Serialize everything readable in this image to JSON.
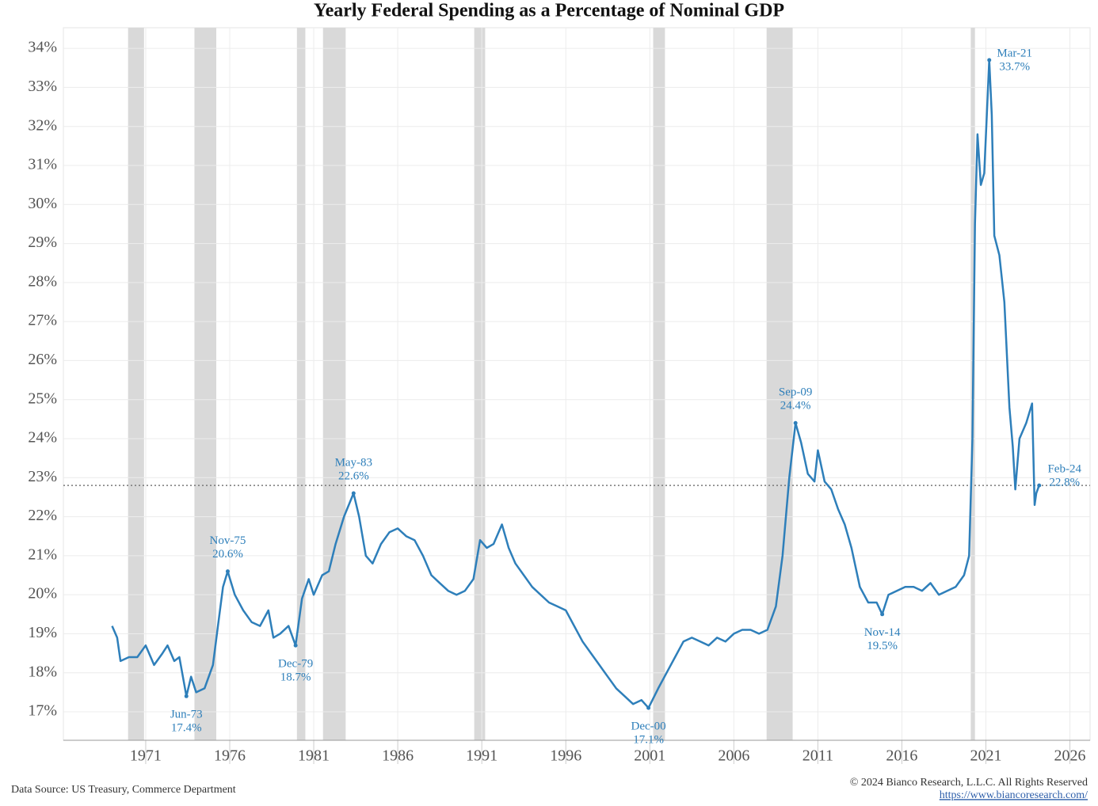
{
  "chart_data": {
    "type": "line",
    "title": "Yearly Federal Spending as a Percentage of Nominal GDP",
    "source": "Data Source: US Treasury, Commerce Department",
    "copyright": "© 2024 Bianco Research, L.L.C. All Rights Reserved",
    "url": "https://www.biancoresearch.com/",
    "xlim": [
      1966.1,
      2027.2
    ],
    "xticks": [
      1971,
      1976,
      1981,
      1986,
      1991,
      1996,
      2001,
      2006,
      2011,
      2016,
      2021,
      2026
    ],
    "ylim": [
      16.27,
      34.53
    ],
    "yticks": [
      {
        "value": 17,
        "label": "17%"
      },
      {
        "value": 18,
        "label": "18%"
      },
      {
        "value": 19,
        "label": "19%"
      },
      {
        "value": 20,
        "label": "20%"
      },
      {
        "value": 21,
        "label": "21%"
      },
      {
        "value": 22,
        "label": "22%"
      },
      {
        "value": 23,
        "label": "23%"
      },
      {
        "value": 24,
        "label": "24%"
      },
      {
        "value": 25,
        "label": "25%"
      },
      {
        "value": 26,
        "label": "26%"
      },
      {
        "value": 27,
        "label": "27%"
      },
      {
        "value": 28,
        "label": "28%"
      },
      {
        "value": 29,
        "label": "29%"
      },
      {
        "value": 30,
        "label": "30%"
      },
      {
        "value": 31,
        "label": "31%"
      },
      {
        "value": 32,
        "label": "32%"
      },
      {
        "value": 33,
        "label": "33%"
      },
      {
        "value": 34,
        "label": "34%"
      }
    ],
    "grid": true,
    "reference_line": 22.8,
    "recessions": [
      [
        1969.95,
        1970.9
      ],
      [
        1973.9,
        1975.2
      ],
      [
        1980.0,
        1980.5
      ],
      [
        1981.55,
        1982.9
      ],
      [
        1990.55,
        1991.2
      ],
      [
        2001.2,
        2001.9
      ],
      [
        2007.95,
        2009.5
      ],
      [
        2020.1,
        2020.35
      ]
    ],
    "recession_color": "#d9d9d9",
    "x": [
      1969.0,
      1969.3,
      1969.5,
      1970.0,
      1970.5,
      1971.0,
      1971.5,
      1972.0,
      1972.3,
      1972.7,
      1973.0,
      1973.42,
      1973.7,
      1974.0,
      1974.5,
      1975.0,
      1975.3,
      1975.6,
      1975.88,
      1976.3,
      1976.8,
      1977.3,
      1977.8,
      1978.3,
      1978.6,
      1979.0,
      1979.5,
      1979.92,
      1980.3,
      1980.7,
      1981.0,
      1981.5,
      1981.9,
      1982.3,
      1982.8,
      1983.37,
      1983.7,
      1984.1,
      1984.5,
      1985.0,
      1985.5,
      1986.0,
      1986.5,
      1987.0,
      1987.5,
      1988.0,
      1988.5,
      1989.0,
      1989.5,
      1990.0,
      1990.5,
      1990.9,
      1991.3,
      1991.7,
      1992.2,
      1992.6,
      1993.0,
      1993.5,
      1994.0,
      1994.5,
      1995.0,
      1995.5,
      1996.0,
      1996.5,
      1997.0,
      1997.5,
      1998.0,
      1998.5,
      1999.0,
      1999.5,
      2000.0,
      2000.5,
      2000.92,
      2001.5,
      2002.0,
      2002.5,
      2003.0,
      2003.5,
      2004.0,
      2004.5,
      2005.0,
      2005.5,
      2006.0,
      2006.5,
      2007.0,
      2007.5,
      2008.0,
      2008.5,
      2008.9,
      2009.3,
      2009.67,
      2010.0,
      2010.4,
      2010.8,
      2011.0,
      2011.4,
      2011.8,
      2012.2,
      2012.6,
      2013.0,
      2013.5,
      2014.0,
      2014.5,
      2014.83,
      2015.2,
      2015.7,
      2016.2,
      2016.7,
      2017.2,
      2017.7,
      2018.2,
      2018.7,
      2019.2,
      2019.7,
      2020.0,
      2020.2,
      2020.35,
      2020.5,
      2020.7,
      2020.9,
      2021.2,
      2021.35,
      2021.5,
      2021.8,
      2022.1,
      2022.4,
      2022.6,
      2022.75,
      2023.0,
      2023.4,
      2023.75,
      2023.9,
      2024.0,
      2024.17
    ],
    "series": [
      {
        "color": "#2e7fba",
        "values": [
          19.2,
          18.9,
          18.3,
          18.4,
          18.4,
          18.7,
          18.2,
          18.5,
          18.7,
          18.3,
          18.4,
          17.4,
          17.9,
          17.5,
          17.6,
          18.2,
          19.2,
          20.2,
          20.6,
          20.0,
          19.6,
          19.3,
          19.2,
          19.6,
          18.9,
          19.0,
          19.2,
          18.7,
          19.9,
          20.4,
          20.0,
          20.5,
          20.6,
          21.3,
          22.0,
          22.6,
          22.0,
          21.0,
          20.8,
          21.3,
          21.6,
          21.7,
          21.5,
          21.4,
          21.0,
          20.5,
          20.3,
          20.1,
          20.0,
          20.1,
          20.4,
          21.4,
          21.2,
          21.3,
          21.8,
          21.2,
          20.8,
          20.5,
          20.2,
          20.0,
          19.8,
          19.7,
          19.6,
          19.2,
          18.8,
          18.5,
          18.2,
          17.9,
          17.6,
          17.4,
          17.2,
          17.3,
          17.1,
          17.6,
          18.0,
          18.4,
          18.8,
          18.9,
          18.8,
          18.7,
          18.9,
          18.8,
          19.0,
          19.1,
          19.1,
          19.0,
          19.1,
          19.7,
          21.0,
          23.0,
          24.4,
          23.9,
          23.1,
          22.9,
          23.7,
          22.9,
          22.7,
          22.2,
          21.8,
          21.2,
          20.2,
          19.8,
          19.8,
          19.5,
          20.0,
          20.1,
          20.2,
          20.2,
          20.1,
          20.3,
          20.0,
          20.1,
          20.2,
          20.5,
          21.0,
          24.0,
          29.5,
          31.8,
          30.5,
          30.8,
          33.7,
          32.3,
          29.2,
          28.7,
          27.5,
          24.8,
          23.8,
          22.7,
          24.0,
          24.4,
          24.9,
          22.3,
          22.6,
          22.8
        ]
      }
    ],
    "annotations": [
      {
        "x": 1973.42,
        "y": 17.4,
        "label": "Jun-73",
        "value_label": "17.4%"
      },
      {
        "x": 1975.88,
        "y": 20.6,
        "label": "Nov-75",
        "value_label": "20.6%"
      },
      {
        "x": 1979.92,
        "y": 18.7,
        "label": "Dec-79",
        "value_label": "18.7%"
      },
      {
        "x": 1983.37,
        "y": 22.6,
        "label": "May-83",
        "value_label": "22.6%"
      },
      {
        "x": 2000.92,
        "y": 17.1,
        "label": "Dec-00",
        "value_label": "17.1%"
      },
      {
        "x": 2009.67,
        "y": 24.4,
        "label": "Sep-09",
        "value_label": "24.4%"
      },
      {
        "x": 2014.83,
        "y": 19.5,
        "label": "Nov-14",
        "value_label": "19.5%"
      },
      {
        "x": 2021.2,
        "y": 33.7,
        "label": "Mar-21",
        "value_label": "33.7%"
      },
      {
        "x": 2024.17,
        "y": 22.8,
        "label": "Feb-24",
        "value_label": "22.8%"
      }
    ]
  }
}
